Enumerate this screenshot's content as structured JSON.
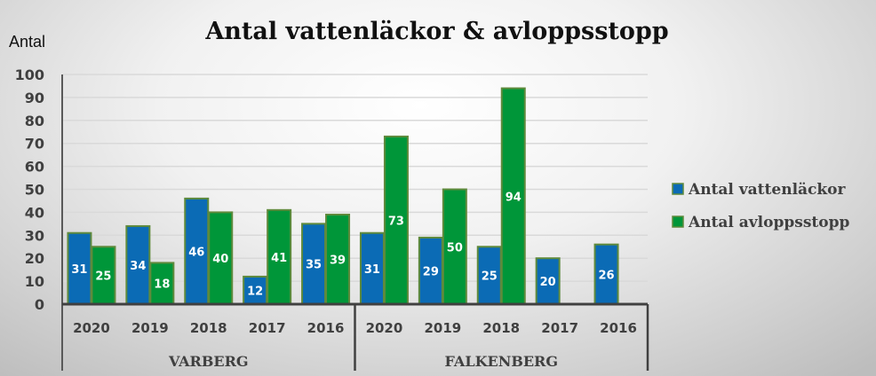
{
  "chart_data": {
    "type": "bar",
    "title": "Antal vattenläckor & avloppsstopp",
    "ylabel": "Antal",
    "xlabel": "",
    "ylim": [
      0,
      100
    ],
    "yticks": [
      0,
      10,
      20,
      30,
      40,
      50,
      60,
      70,
      80,
      90,
      100
    ],
    "grid": true,
    "legend_position": "right",
    "groups": [
      {
        "name": "VARBERG",
        "categories": [
          "2020",
          "2019",
          "2018",
          "2017",
          "2016"
        ]
      },
      {
        "name": "FALKENBERG",
        "categories": [
          "2020",
          "2019",
          "2018",
          "2017",
          "2016"
        ]
      }
    ],
    "series": [
      {
        "name": "Antal vattenläckor",
        "color": "#0b6bb5",
        "values": [
          31,
          34,
          46,
          12,
          35,
          31,
          29,
          25,
          20,
          26
        ]
      },
      {
        "name": "Antal avloppsstopp",
        "color": "#009639",
        "values": [
          25,
          18,
          40,
          41,
          39,
          73,
          50,
          94,
          null,
          null
        ]
      }
    ]
  }
}
